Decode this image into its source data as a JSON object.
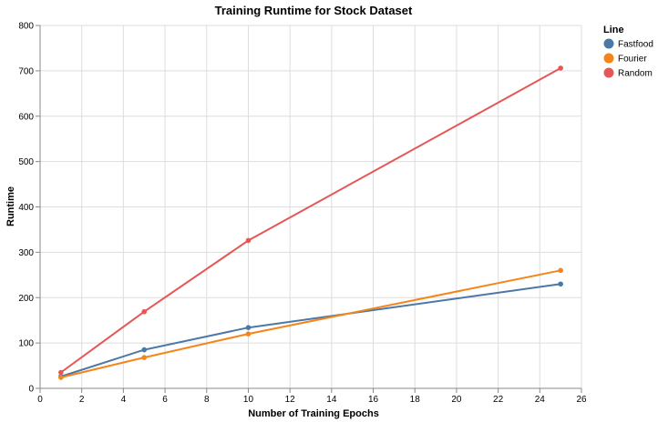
{
  "chart_data": {
    "type": "line",
    "title": "Training Runtime for Stock Dataset",
    "xlabel": "Number of Training Epochs",
    "ylabel": "Runtime",
    "xlim": [
      0,
      26
    ],
    "ylim": [
      0,
      800
    ],
    "x_ticks": [
      0,
      2,
      4,
      6,
      8,
      10,
      12,
      14,
      16,
      18,
      20,
      22,
      24,
      26
    ],
    "y_ticks": [
      0,
      100,
      200,
      300,
      400,
      500,
      600,
      700,
      800
    ],
    "grid": true,
    "legend": {
      "title": "Line",
      "position": "top-right"
    },
    "series": [
      {
        "name": "Fastfood",
        "color": "#4c78a8",
        "x": [
          1,
          5,
          10,
          25
        ],
        "y": [
          26,
          85,
          134,
          230
        ]
      },
      {
        "name": "Fourier",
        "color": "#f58518",
        "x": [
          1,
          5,
          10,
          25
        ],
        "y": [
          24,
          68,
          120,
          260
        ]
      },
      {
        "name": "Random",
        "color": "#e45756",
        "x": [
          1,
          5,
          10,
          25
        ],
        "y": [
          35,
          169,
          326,
          706
        ]
      }
    ]
  }
}
